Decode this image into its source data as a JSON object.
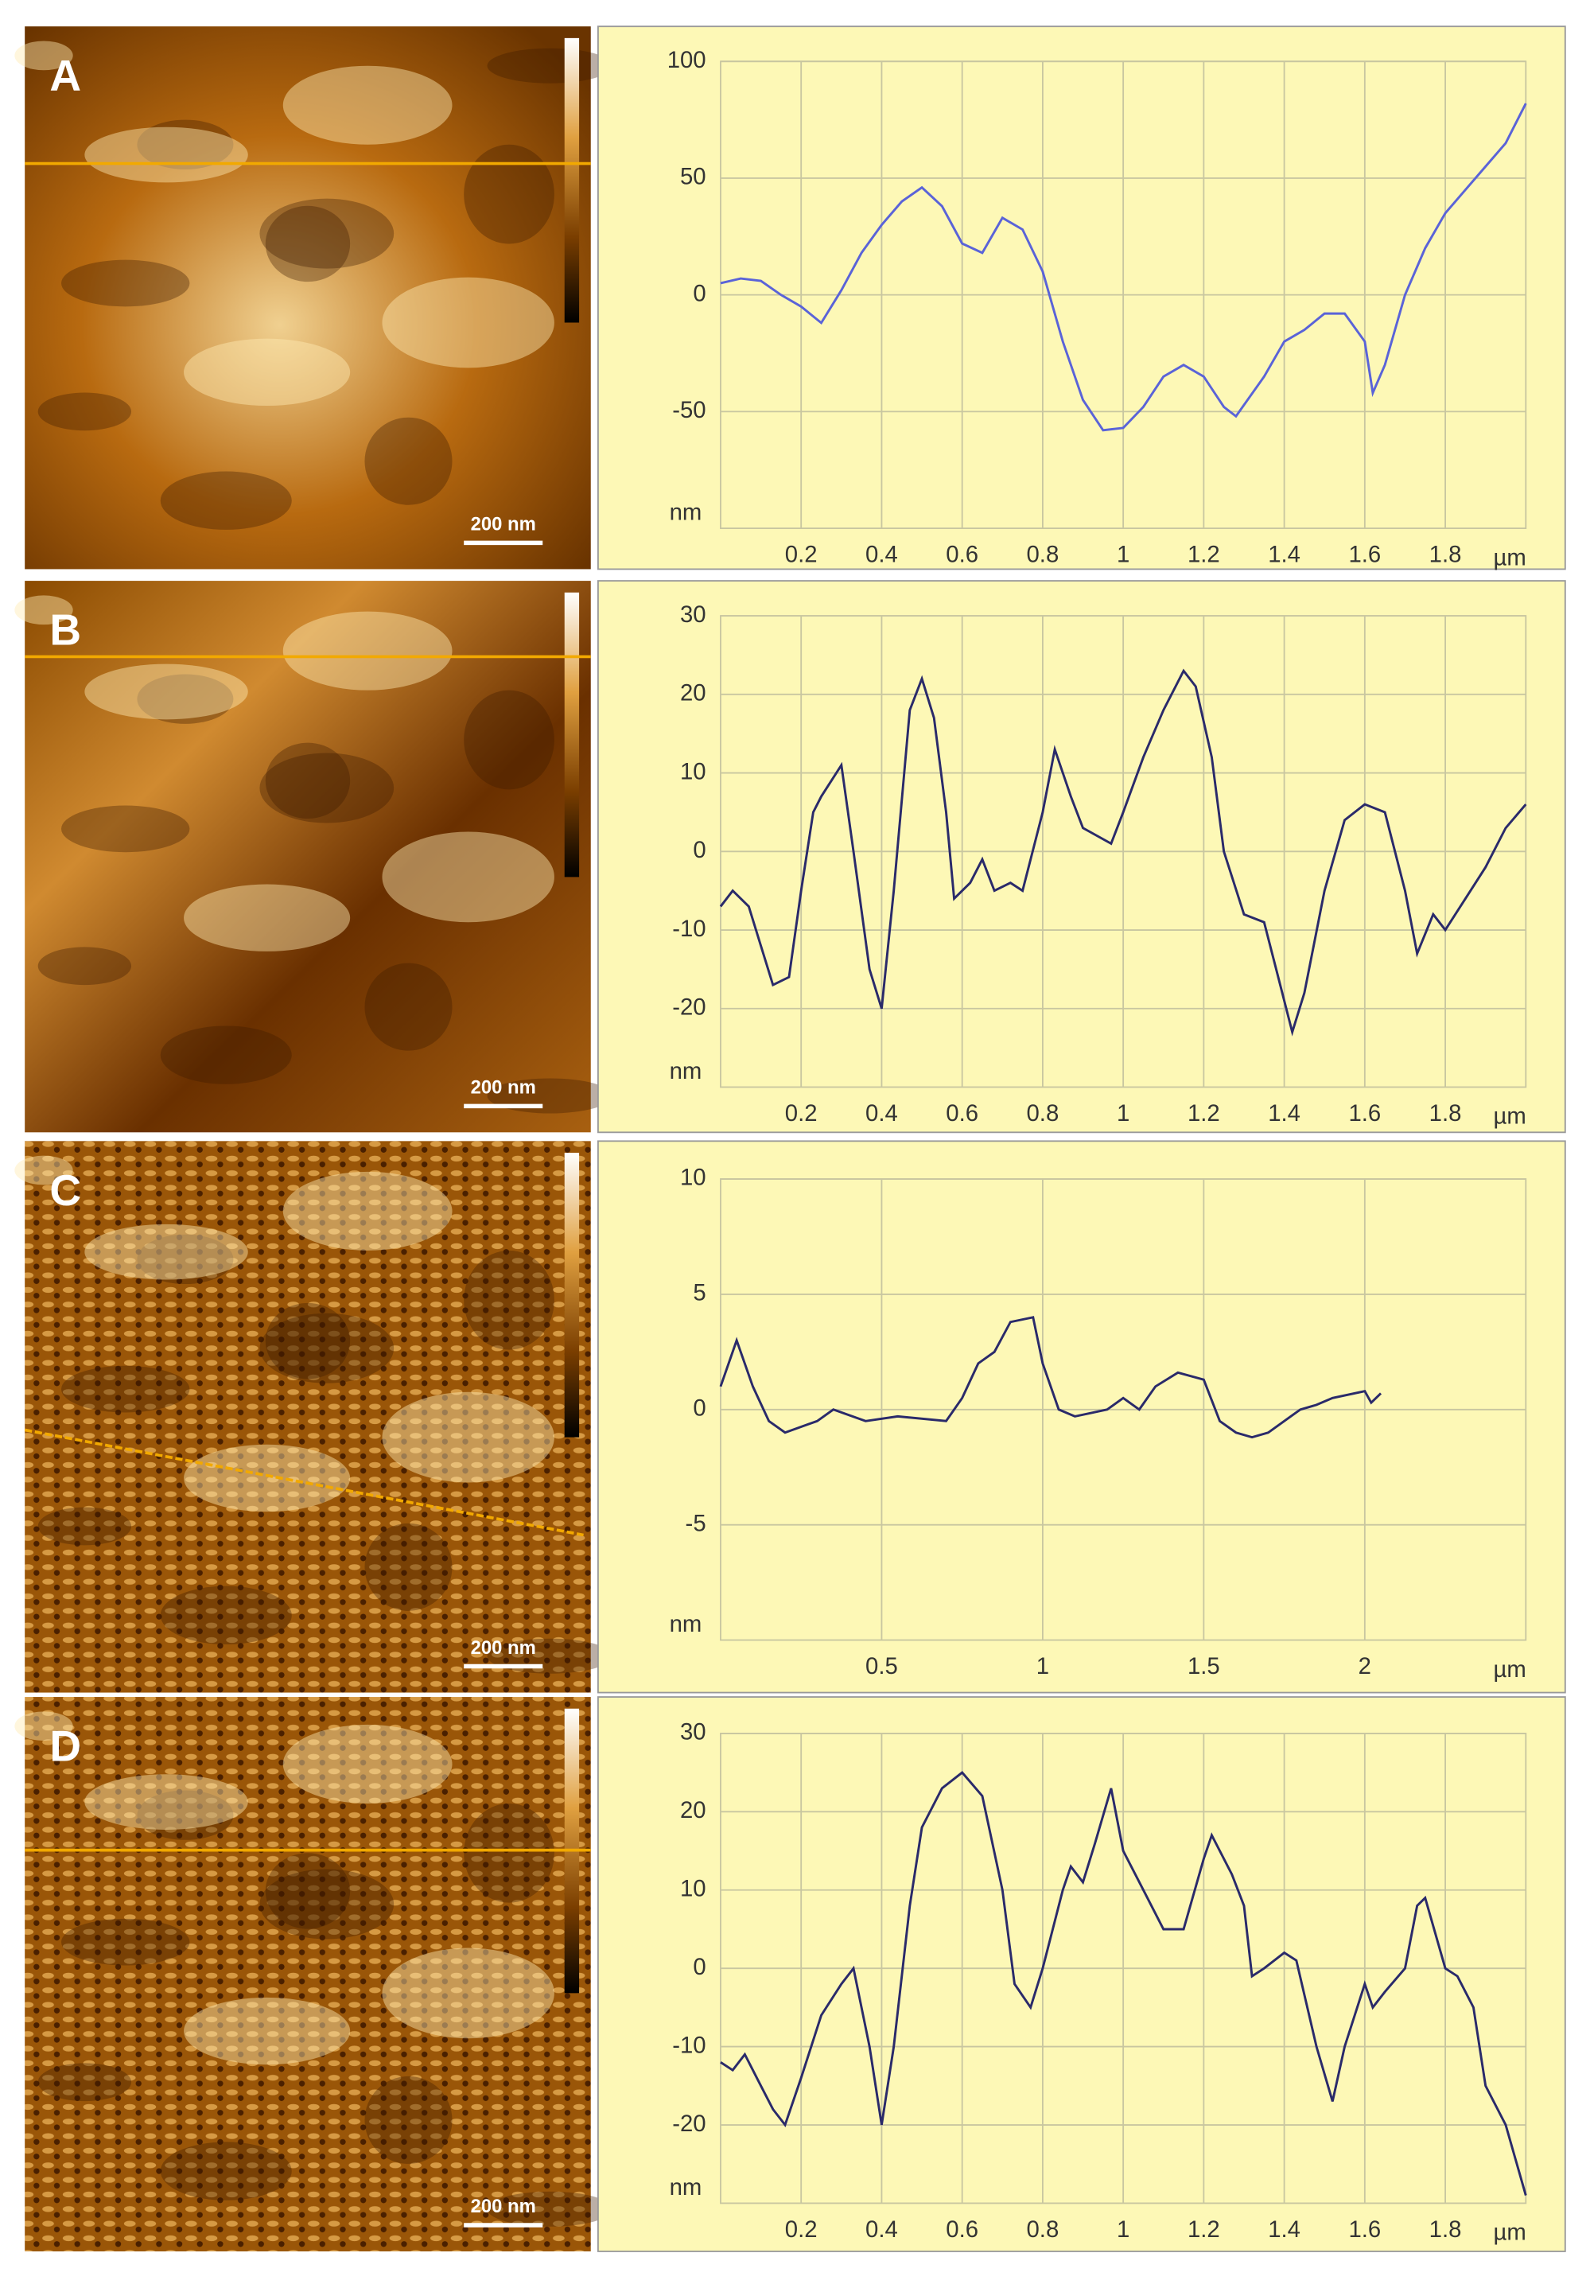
{
  "chart_data": [
    {
      "type": "line",
      "panel": "A",
      "scale_bar": "200 nm",
      "y_label": "nm",
      "x_label": "µm",
      "color": "#5a63d8",
      "xlim": [
        0,
        2
      ],
      "xticks": [
        0.2,
        0.4,
        0.6,
        0.8,
        1,
        1.2,
        1.4,
        1.6,
        1.8
      ],
      "ylim": [
        -100,
        100
      ],
      "yticks": [
        -50,
        0,
        50,
        100
      ],
      "grid": true,
      "x": [
        0,
        0.05,
        0.1,
        0.15,
        0.2,
        0.25,
        0.3,
        0.35,
        0.4,
        0.45,
        0.5,
        0.55,
        0.6,
        0.65,
        0.7,
        0.75,
        0.8,
        0.85,
        0.9,
        0.95,
        1.0,
        1.05,
        1.1,
        1.15,
        1.2,
        1.25,
        1.28,
        1.35,
        1.4,
        1.45,
        1.5,
        1.55,
        1.6,
        1.62,
        1.65,
        1.7,
        1.75,
        1.8,
        1.85,
        1.9,
        1.95,
        2.0
      ],
      "values": [
        5,
        7,
        6,
        0,
        -5,
        -12,
        2,
        18,
        30,
        40,
        46,
        38,
        22,
        18,
        33,
        28,
        10,
        -20,
        -45,
        -58,
        -57,
        -48,
        -35,
        -30,
        -35,
        -48,
        -52,
        -35,
        -20,
        -15,
        -8,
        -8,
        -20,
        -42,
        -30,
        0,
        20,
        35,
        45,
        55,
        65,
        82
      ]
    },
    {
      "type": "line",
      "panel": "B",
      "scale_bar": "200 nm",
      "y_label": "nm",
      "x_label": "µm",
      "color": "#2a2a6a",
      "xlim": [
        0,
        2
      ],
      "xticks": [
        0.2,
        0.4,
        0.6,
        0.8,
        1,
        1.2,
        1.4,
        1.6,
        1.8
      ],
      "ylim": [
        -30,
        30
      ],
      "yticks": [
        -20,
        -10,
        0,
        10,
        20,
        30
      ],
      "grid": true,
      "x": [
        0,
        0.03,
        0.07,
        0.1,
        0.13,
        0.17,
        0.2,
        0.23,
        0.25,
        0.3,
        0.33,
        0.37,
        0.4,
        0.43,
        0.47,
        0.5,
        0.53,
        0.56,
        0.58,
        0.62,
        0.65,
        0.68,
        0.72,
        0.75,
        0.8,
        0.83,
        0.87,
        0.9,
        0.97,
        1.0,
        1.05,
        1.1,
        1.15,
        1.18,
        1.22,
        1.25,
        1.3,
        1.35,
        1.38,
        1.42,
        1.45,
        1.5,
        1.55,
        1.6,
        1.65,
        1.7,
        1.73,
        1.77,
        1.8,
        1.85,
        1.9,
        1.95,
        2.0
      ],
      "values": [
        -7,
        -5,
        -7,
        -12,
        -17,
        -16,
        -5,
        5,
        7,
        11,
        0,
        -15,
        -20,
        -5,
        18,
        22,
        17,
        5,
        -6,
        -4,
        -1,
        -5,
        -4,
        -5,
        5,
        13,
        7,
        3,
        1,
        5,
        12,
        18,
        23,
        21,
        12,
        0,
        -8,
        -9,
        -15,
        -23,
        -18,
        -5,
        4,
        6,
        5,
        -5,
        -13,
        -8,
        -10,
        -6,
        -2,
        3,
        6
      ]
    },
    {
      "type": "line",
      "panel": "C",
      "scale_bar": "200 nm",
      "y_label": "nm",
      "x_label": "µm",
      "color": "#2a2a6a",
      "xlim": [
        0,
        2.5
      ],
      "xticks": [
        0.5,
        1,
        1.5,
        2
      ],
      "ylim": [
        -10,
        10
      ],
      "yticks": [
        -5,
        0,
        5,
        10
      ],
      "grid": true,
      "x": [
        0,
        0.05,
        0.1,
        0.15,
        0.2,
        0.3,
        0.35,
        0.45,
        0.55,
        0.7,
        0.75,
        0.8,
        0.85,
        0.9,
        0.97,
        1.0,
        1.05,
        1.1,
        1.2,
        1.25,
        1.3,
        1.35,
        1.42,
        1.5,
        1.55,
        1.6,
        1.65,
        1.7,
        1.8,
        1.85,
        1.9,
        2.0,
        2.02,
        2.05
      ],
      "values": [
        1,
        3,
        1,
        -0.5,
        -1,
        -0.5,
        0,
        -0.5,
        -0.3,
        -0.5,
        0.5,
        2,
        2.5,
        3.8,
        4,
        2,
        0,
        -0.3,
        0,
        0.5,
        0,
        1,
        1.6,
        1.3,
        -0.5,
        -1,
        -1.2,
        -1,
        0,
        0.2,
        0.5,
        0.8,
        0.3,
        0.7
      ]
    },
    {
      "type": "line",
      "panel": "D",
      "scale_bar": "200 nm",
      "y_label": "nm",
      "x_label": "µm",
      "color": "#2a2a6a",
      "xlim": [
        0,
        2
      ],
      "xticks": [
        0.2,
        0.4,
        0.6,
        0.8,
        1,
        1.2,
        1.4,
        1.6,
        1.8
      ],
      "ylim": [
        -30,
        30
      ],
      "yticks": [
        -20,
        -10,
        0,
        10,
        20,
        30
      ],
      "grid": true,
      "x": [
        0,
        0.03,
        0.06,
        0.1,
        0.13,
        0.16,
        0.2,
        0.25,
        0.3,
        0.33,
        0.37,
        0.4,
        0.43,
        0.47,
        0.5,
        0.55,
        0.6,
        0.65,
        0.7,
        0.73,
        0.77,
        0.8,
        0.85,
        0.87,
        0.9,
        0.93,
        0.97,
        1.0,
        1.05,
        1.1,
        1.15,
        1.2,
        1.22,
        1.27,
        1.3,
        1.32,
        1.35,
        1.4,
        1.43,
        1.48,
        1.52,
        1.55,
        1.6,
        1.62,
        1.65,
        1.7,
        1.73,
        1.75,
        1.8,
        1.83,
        1.87,
        1.9,
        1.95,
        2.0
      ],
      "values": [
        -12,
        -13,
        -11,
        -15,
        -18,
        -20,
        -14,
        -6,
        -2,
        0,
        -10,
        -20,
        -10,
        8,
        18,
        23,
        25,
        22,
        10,
        -2,
        -5,
        0,
        10,
        13,
        11,
        16,
        23,
        15,
        10,
        5,
        5,
        14,
        17,
        12,
        8,
        -1,
        0,
        2,
        1,
        -10,
        -17,
        -10,
        -2,
        -5,
        -3,
        0,
        8,
        9,
        0,
        -1,
        -5,
        -15,
        -20,
        -29
      ]
    }
  ]
}
